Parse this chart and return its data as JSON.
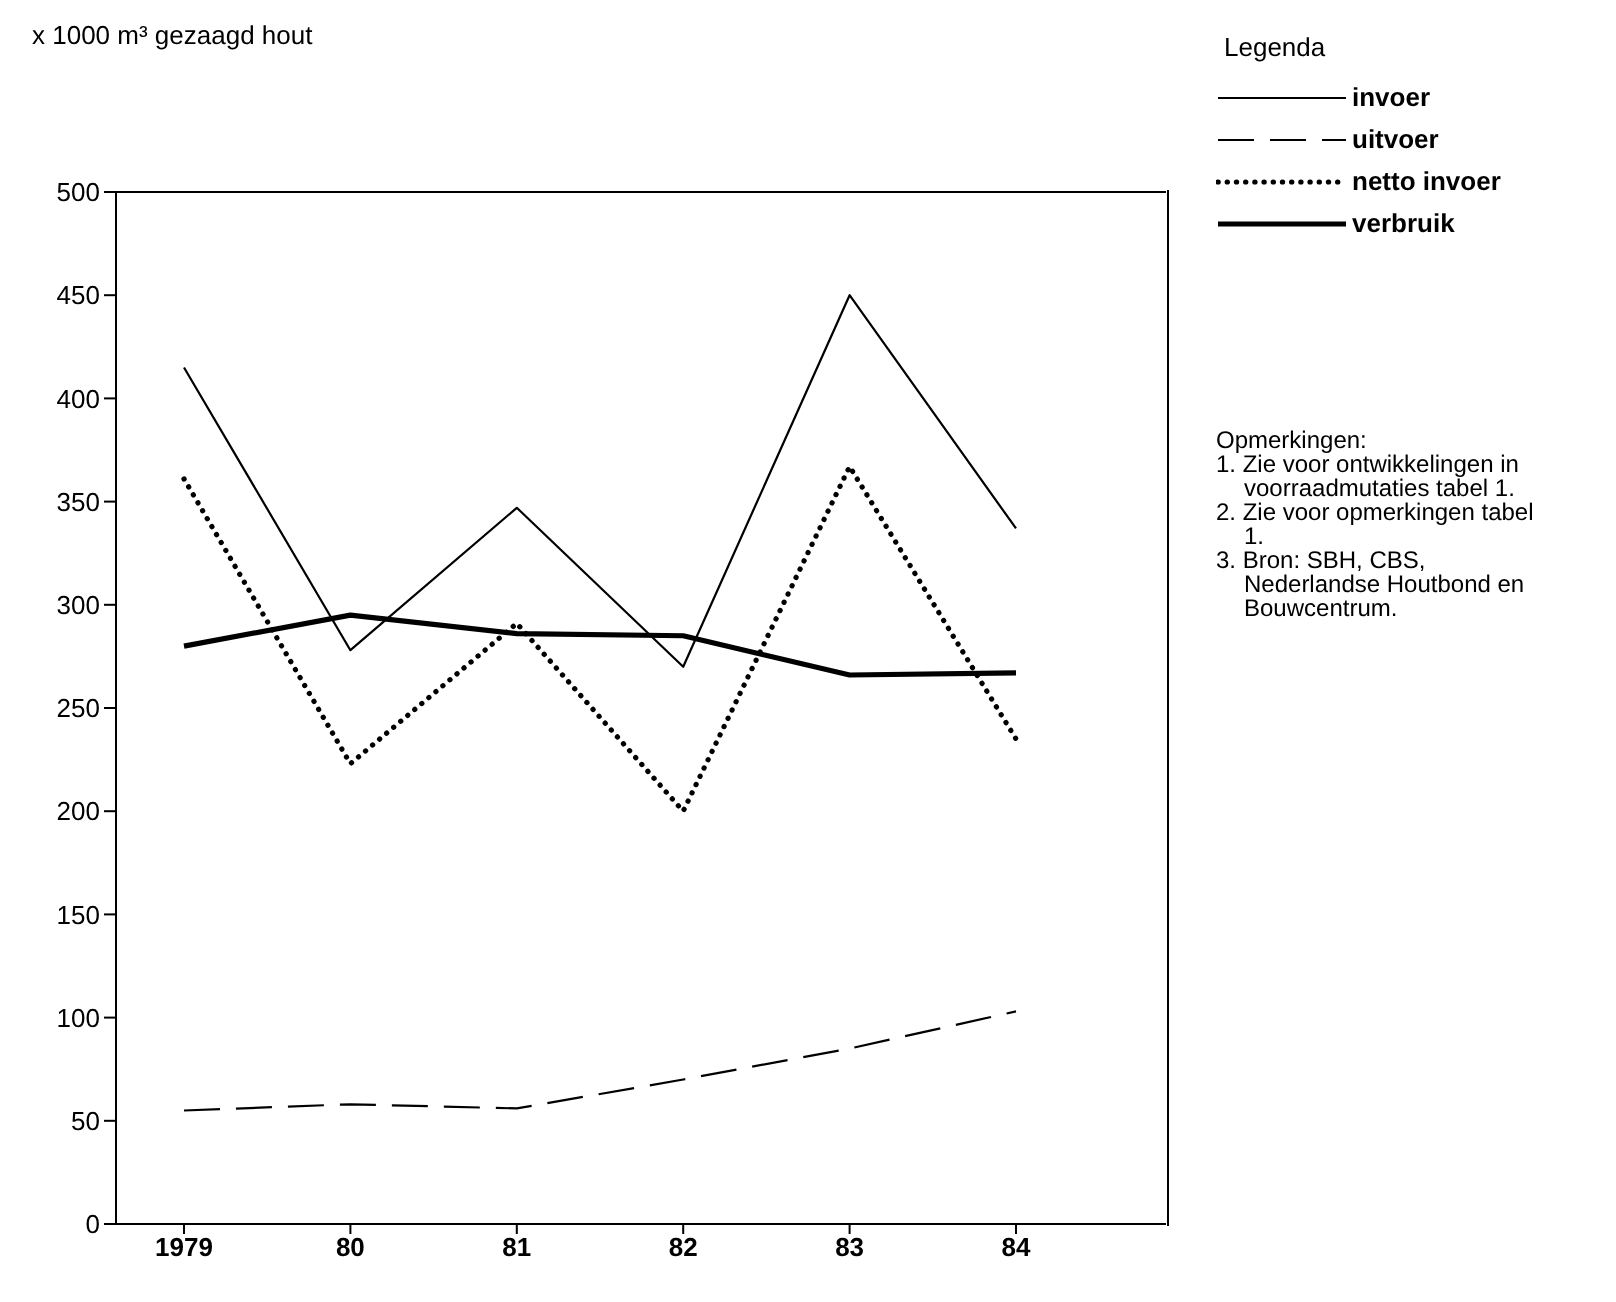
{
  "chart_data": {
    "type": "line",
    "ylabel": "x 1000 m³ gezaagd hout",
    "legend_title": "Legenda",
    "categories": [
      "1979",
      "80",
      "81",
      "82",
      "83",
      "84"
    ],
    "series": [
      {
        "name": "invoer",
        "color": "#000000",
        "line_style": "solid",
        "values": [
          415,
          278,
          347,
          270,
          450,
          337
        ]
      },
      {
        "name": "uitvoer",
        "color": "#000000",
        "line_style": "dashed",
        "values": [
          55,
          58,
          56,
          70,
          85,
          103
        ]
      },
      {
        "name": "netto invoer",
        "color": "#000000",
        "line_style": "dotted",
        "values": [
          361,
          223,
          291,
          200,
          367,
          235
        ]
      },
      {
        "name": "verbruik",
        "color": "#000000",
        "line_style": "solid",
        "values": [
          280,
          295,
          286,
          285,
          266,
          267
        ]
      }
    ],
    "ylim": [
      0,
      500
    ],
    "yticks": [
      0,
      50,
      100,
      150,
      200,
      250,
      300,
      350,
      400,
      450,
      500
    ],
    "grid": false,
    "legend": "top right",
    "marker": "none",
    "annotations": [
      "Opmerkingen:",
      "1. Zie voor ontwikkelingen in voorraadmutaties tabel 1.",
      "2. Zie voor opmerkingen tabel 1.",
      "3. Bron: SBH, CBS, Nederlandse Houtbond en Bouwcentrum."
    ]
  }
}
